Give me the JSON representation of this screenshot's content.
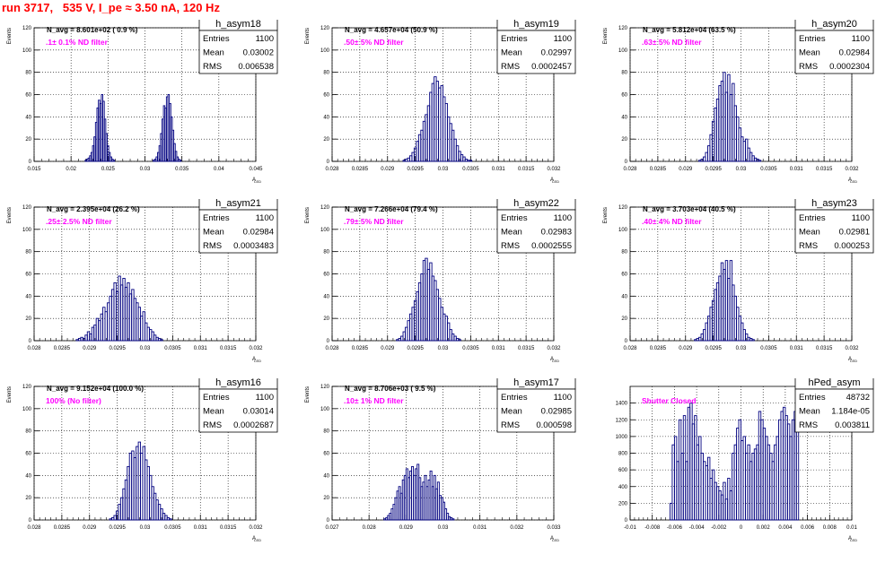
{
  "run_title": "run 3717,   535 V, I_pe ≈ 3.50 nA, 120 Hz",
  "chart_data": [
    {
      "type": "bar",
      "name": "h_asym18",
      "ylabel": "Events",
      "xlabel": "A",
      "xlabel_sub": "LED",
      "navg": "N_avg = 8.601e+02 ( 0.9 %)",
      "filter": ".1± 0.1% ND filter",
      "stats": [
        [
          "Entries",
          "1100"
        ],
        [
          "Mean",
          "0.03002"
        ],
        [
          "RMS",
          "0.006538"
        ]
      ],
      "xlim": [
        0.015,
        0.045
      ],
      "ylim": [
        0,
        120
      ],
      "xticks": [
        "0.015",
        "0.02",
        "0.025",
        "0.03",
        "0.035",
        "0.04",
        "0.045"
      ],
      "yticks": [
        "0",
        "20",
        "40",
        "60",
        "80",
        "100",
        "120"
      ],
      "x_start": 0.0215,
      "bin_width": 0.0002,
      "values": [
        0,
        0,
        1,
        2,
        3,
        5,
        8,
        14,
        22,
        35,
        48,
        55,
        52,
        60,
        54,
        38,
        25,
        14,
        8,
        4,
        2,
        1,
        0,
        0,
        0,
        0,
        0,
        0,
        0,
        0,
        0,
        0,
        0,
        0,
        0,
        0,
        0,
        0,
        0,
        0,
        0,
        0,
        0,
        0,
        0,
        0,
        0,
        0,
        1,
        2,
        4,
        8,
        14,
        25,
        38,
        50,
        48,
        58,
        60,
        52,
        40,
        28,
        16,
        9,
        4,
        2,
        1,
        0
      ]
    },
    {
      "type": "bar",
      "name": "h_asym19",
      "ylabel": "Events",
      "xlabel": "A",
      "xlabel_sub": "LED",
      "navg": "N_avg = 4.657e+04 (50.9 %)",
      "filter": ".50± 5% ND filter",
      "stats": [
        [
          "Entries",
          "1100"
        ],
        [
          "Mean",
          "0.02997"
        ],
        [
          "RMS",
          "0.0002457"
        ]
      ],
      "xlim": [
        0.028,
        0.032
      ],
      "ylim": [
        0,
        120
      ],
      "xticks": [
        "0.028",
        "0.0285",
        "0.029",
        "0.0295",
        "0.03",
        "0.0305",
        "0.031",
        "0.0315",
        "0.032"
      ],
      "yticks": [
        "0",
        "20",
        "40",
        "60",
        "80",
        "100",
        "120"
      ],
      "x_start": 0.02928,
      "bin_width": 4e-05,
      "values": [
        1,
        2,
        3,
        5,
        8,
        12,
        18,
        24,
        28,
        36,
        42,
        50,
        62,
        70,
        76,
        72,
        66,
        68,
        58,
        52,
        40,
        34,
        28,
        20,
        14,
        9,
        6,
        4,
        2,
        1,
        1,
        0
      ]
    },
    {
      "type": "bar",
      "name": "h_asym20",
      "ylabel": "Events",
      "xlabel": "A",
      "xlabel_sub": "LED",
      "navg": "N_avg = 5.812e+04 (63.5 %)",
      "filter": ".63± 5% ND filter",
      "stats": [
        [
          "Entries",
          "1100"
        ],
        [
          "Mean",
          "0.02984"
        ],
        [
          "RMS",
          "0.0002304"
        ]
      ],
      "xlim": [
        0.028,
        0.032
      ],
      "ylim": [
        0,
        120
      ],
      "xticks": [
        "0.028",
        "0.0285",
        "0.029",
        "0.0295",
        "0.03",
        "0.0305",
        "0.031",
        "0.0315",
        "0.032"
      ],
      "yticks": [
        "0",
        "20",
        "40",
        "60",
        "80",
        "100",
        "120"
      ],
      "x_start": 0.02924,
      "bin_width": 4e-05,
      "values": [
        1,
        2,
        4,
        8,
        14,
        24,
        36,
        48,
        56,
        68,
        72,
        80,
        62,
        78,
        60,
        70,
        50,
        40,
        30,
        22,
        18,
        20,
        12,
        8,
        5,
        3,
        2,
        1
      ]
    },
    {
      "type": "bar",
      "name": "h_asym21",
      "ylabel": "Events",
      "xlabel": "A",
      "xlabel_sub": "LED",
      "navg": "N_avg = 2.395e+04 (26.2 %)",
      "filter": ".25± 2.5% ND filter",
      "stats": [
        [
          "Entries",
          "1100"
        ],
        [
          "Mean",
          "0.02984"
        ],
        [
          "RMS",
          "0.0003483"
        ]
      ],
      "xlim": [
        0.028,
        0.032
      ],
      "ylim": [
        0,
        120
      ],
      "xticks": [
        "0.028",
        "0.0285",
        "0.029",
        "0.0295",
        "0.03",
        "0.0305",
        "0.031",
        "0.0315",
        "0.032"
      ],
      "yticks": [
        "0",
        "20",
        "40",
        "60",
        "80",
        "100",
        "120"
      ],
      "x_start": 0.02876,
      "bin_width": 4e-05,
      "values": [
        1,
        2,
        3,
        2,
        5,
        8,
        6,
        12,
        14,
        20,
        18,
        24,
        30,
        26,
        34,
        40,
        46,
        52,
        44,
        58,
        50,
        56,
        48,
        52,
        42,
        46,
        38,
        34,
        30,
        22,
        26,
        16,
        12,
        10,
        8,
        5,
        3,
        2,
        1
      ]
    },
    {
      "type": "bar",
      "name": "h_asym22",
      "ylabel": "Events",
      "xlabel": "A",
      "xlabel_sub": "LED",
      "navg": "N_avg = 7.266e+04 (79.4 %)",
      "filter": ".79± 5% ND filter",
      "stats": [
        [
          "Entries",
          "1100"
        ],
        [
          "Mean",
          "0.02983"
        ],
        [
          "RMS",
          "0.0002555"
        ]
      ],
      "xlim": [
        0.028,
        0.032
      ],
      "ylim": [
        0,
        120
      ],
      "xticks": [
        "0.028",
        "0.0285",
        "0.029",
        "0.0295",
        "0.03",
        "0.0305",
        "0.031",
        "0.0315",
        "0.032"
      ],
      "yticks": [
        "0",
        "20",
        "40",
        "60",
        "80",
        "100",
        "120"
      ],
      "x_start": 0.02916,
      "bin_width": 4e-05,
      "values": [
        1,
        2,
        4,
        8,
        12,
        18,
        24,
        30,
        36,
        44,
        52,
        60,
        72,
        74,
        64,
        70,
        58,
        54,
        46,
        38,
        30,
        24,
        22,
        16,
        10,
        6,
        4,
        2,
        1
      ]
    },
    {
      "type": "bar",
      "name": "h_asym23",
      "ylabel": "Events",
      "xlabel": "A",
      "xlabel_sub": "LED",
      "navg": "N_avg = 3.703e+04 (40.5 %)",
      "filter": ".40± 4% ND filter",
      "stats": [
        [
          "Entries",
          "1100"
        ],
        [
          "Mean",
          "0.02981"
        ],
        [
          "RMS",
          "0.000253"
        ]
      ],
      "xlim": [
        0.028,
        0.032
      ],
      "ylim": [
        0,
        120
      ],
      "xticks": [
        "0.028",
        "0.0285",
        "0.029",
        "0.0295",
        "0.03",
        "0.0305",
        "0.031",
        "0.0315",
        "0.032"
      ],
      "yticks": [
        "0",
        "20",
        "40",
        "60",
        "80",
        "100",
        "120"
      ],
      "x_start": 0.02916,
      "bin_width": 4e-05,
      "values": [
        1,
        2,
        3,
        6,
        10,
        16,
        22,
        30,
        36,
        46,
        52,
        58,
        70,
        64,
        72,
        56,
        72,
        50,
        40,
        30,
        22,
        16,
        10,
        6,
        3,
        2,
        1
      ]
    },
    {
      "type": "bar",
      "name": "h_asym16",
      "ylabel": "Events",
      "xlabel": "A",
      "xlabel_sub": "LED",
      "navg": "N_avg = 9.152e+04 (100.0 %)",
      "filter": "100% (No filter)",
      "stats": [
        [
          "Entries",
          "1100"
        ],
        [
          "Mean",
          "0.03014"
        ],
        [
          "RMS",
          "0.0002687"
        ]
      ],
      "xlim": [
        0.028,
        0.032
      ],
      "ylim": [
        0,
        120
      ],
      "xticks": [
        "0.028",
        "0.0285",
        "0.029",
        "0.0295",
        "0.03",
        "0.0305",
        "0.031",
        "0.0315",
        "0.032"
      ],
      "yticks": [
        "0",
        "20",
        "40",
        "60",
        "80",
        "100",
        "120"
      ],
      "x_start": 0.02936,
      "bin_width": 4e-05,
      "values": [
        1,
        2,
        4,
        8,
        14,
        20,
        28,
        36,
        48,
        60,
        62,
        56,
        66,
        70,
        60,
        66,
        54,
        48,
        40,
        30,
        24,
        18,
        14,
        10,
        6,
        4,
        2,
        1
      ]
    },
    {
      "type": "bar",
      "name": "h_asym17",
      "ylabel": "Events",
      "xlabel": "A",
      "xlabel_sub": "LED",
      "navg": "N_avg = 8.706e+03 ( 9.5 %)",
      "filter": ".10± 1% ND filter",
      "stats": [
        [
          "Entries",
          "1100"
        ],
        [
          "Mean",
          "0.02985"
        ],
        [
          "RMS",
          "0.000598"
        ]
      ],
      "xlim": [
        0.027,
        0.033
      ],
      "ylim": [
        0,
        120
      ],
      "xticks": [
        "0.027",
        "0.028",
        "0.029",
        "0.03",
        "0.031",
        "0.032",
        "0.033"
      ],
      "yticks": [
        "0",
        "20",
        "40",
        "60",
        "80",
        "100",
        "120"
      ],
      "x_start": 0.0284,
      "bin_width": 5e-05,
      "values": [
        1,
        2,
        4,
        6,
        10,
        14,
        20,
        26,
        30,
        24,
        36,
        40,
        46,
        38,
        44,
        48,
        40,
        46,
        50,
        38,
        30,
        34,
        40,
        30,
        36,
        44,
        30,
        40,
        28,
        34,
        22,
        20,
        16,
        10,
        6,
        3,
        2,
        1
      ]
    },
    {
      "type": "bar",
      "name": "hPed_asym",
      "ylabel": "",
      "xlabel": "A",
      "xlabel_sub": "LED",
      "navg": "",
      "filter": "Shutter Closed",
      "stats": [
        [
          "Entries",
          "48732"
        ],
        [
          "Mean",
          "1.184e-05"
        ],
        [
          "RMS",
          "0.003811"
        ]
      ],
      "xlim": [
        -0.01,
        0.01
      ],
      "ylim": [
        0,
        1600
      ],
      "xticks": [
        "-0.01",
        "-0.008",
        "-0.006",
        "-0.004",
        "-0.002",
        "0",
        "0.002",
        "0.004",
        "0.006",
        "0.008",
        "0.01"
      ],
      "yticks": [
        "0",
        "200",
        "400",
        "600",
        "800",
        "1000",
        "1200",
        "1400"
      ],
      "x_start": -0.0064,
      "bin_width": 0.0002,
      "values": [
        200,
        900,
        1000,
        700,
        1200,
        800,
        1250,
        700,
        1350,
        1400,
        1150,
        1250,
        900,
        1000,
        800,
        700,
        650,
        750,
        500,
        600,
        450,
        400,
        350,
        300,
        450,
        250,
        500,
        350,
        800,
        900,
        1100,
        1200,
        950,
        1000,
        800,
        900,
        700,
        800,
        850,
        900,
        1300,
        1200,
        1100,
        1000,
        900,
        800,
        700,
        900,
        1000,
        1200,
        1300,
        1350,
        1250,
        1150,
        1000,
        1200,
        1300,
        1400,
        0,
        0,
        0,
        0,
        0,
        0
      ]
    }
  ]
}
